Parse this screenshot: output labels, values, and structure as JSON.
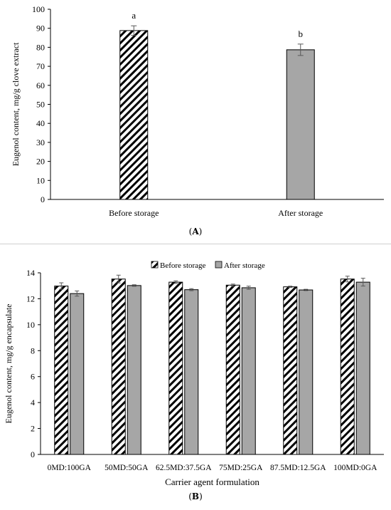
{
  "chart_data": [
    {
      "type": "bar",
      "panel_label": "A",
      "categories": [
        "Before storage",
        "After storage"
      ],
      "values": [
        88.8,
        78.7
      ],
      "errors": [
        2.5,
        3.0
      ],
      "significance_letters": [
        "a",
        "b"
      ],
      "patterns": [
        "hatched",
        "gray"
      ],
      "xlabel": "",
      "ylabel": "Eugenol content, mg/g clove extract",
      "ylim": [
        0,
        100
      ],
      "yticks": [
        0,
        10,
        20,
        30,
        40,
        50,
        60,
        70,
        80,
        90,
        100
      ],
      "grid": false
    },
    {
      "type": "bar",
      "panel_label": "B",
      "categories": [
        "0MD:100GA",
        "50MD:50GA",
        "62.5MD:37.5GA",
        "75MD:25GA",
        "87.5MD:12.5GA",
        "100MD:0GA"
      ],
      "series": [
        {
          "name": "Before storage",
          "pattern": "hatched",
          "values": [
            12.98,
            13.52,
            13.28,
            13.05,
            12.92,
            13.52
          ],
          "errors": [
            0.25,
            0.3,
            0.1,
            0.08,
            0.05,
            0.22
          ]
        },
        {
          "name": "After storage",
          "pattern": "gray",
          "values": [
            12.4,
            13.02,
            12.7,
            12.85,
            12.68,
            13.28
          ],
          "errors": [
            0.2,
            0.06,
            0.08,
            0.12,
            0.05,
            0.3
          ]
        }
      ],
      "xlabel": "Carrier agent formulation",
      "ylabel": "Eugenol content, mg/g encapsulate",
      "ylim": [
        0,
        14
      ],
      "yticks": [
        0,
        2,
        4,
        6,
        8,
        10,
        12,
        14
      ],
      "legend_position": "top",
      "grid": false
    }
  ],
  "captions": {
    "a": "(A)",
    "b": "(B)"
  },
  "colors": {
    "gray_bar": "#a6a6a6",
    "hatch": "#000000",
    "error_bar": "#595959"
  }
}
